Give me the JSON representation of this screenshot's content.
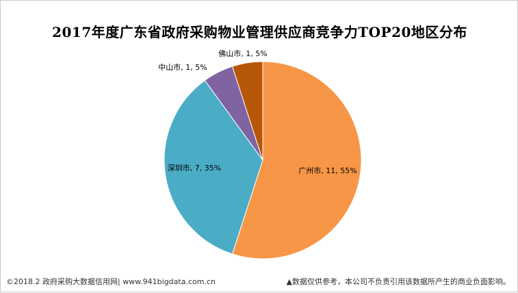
{
  "chart_data": {
    "type": "pie",
    "title": "2017年度广东省政府采购物业管理供应商竞争力TOP20地区分布",
    "slices": [
      {
        "name": "广州市",
        "value": 11,
        "percent": "55%",
        "color": "#F79646"
      },
      {
        "name": "深圳市",
        "value": 7,
        "percent": "35%",
        "color": "#4BACC6"
      },
      {
        "name": "中山市",
        "value": 1,
        "percent": "5%",
        "color": "#8064A2"
      },
      {
        "name": "佛山市",
        "value": 1,
        "percent": "5%",
        "color": "#B65708"
      }
    ]
  },
  "footer": {
    "source": "©2018.2 政府采购大数据信用网| www.941bigdata.com.cn",
    "disclaimer": "▲数据仅供参考，本公司不负责引用该数据所产生的商业负面影响。"
  }
}
